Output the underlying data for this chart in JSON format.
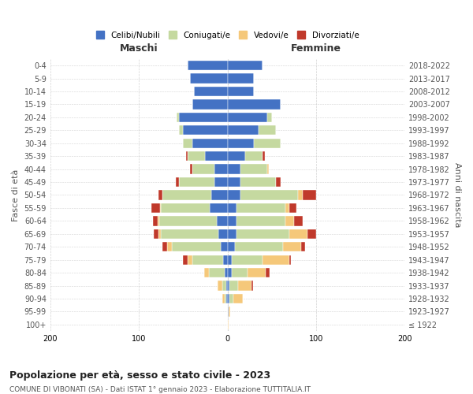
{
  "age_groups": [
    "100+",
    "95-99",
    "90-94",
    "85-89",
    "80-84",
    "75-79",
    "70-74",
    "65-69",
    "60-64",
    "55-59",
    "50-54",
    "45-49",
    "40-44",
    "35-39",
    "30-34",
    "25-29",
    "20-24",
    "15-19",
    "10-14",
    "5-9",
    "0-4"
  ],
  "birth_years": [
    "≤ 1922",
    "1923-1927",
    "1928-1932",
    "1933-1937",
    "1938-1942",
    "1943-1947",
    "1948-1952",
    "1953-1957",
    "1958-1962",
    "1963-1967",
    "1968-1972",
    "1973-1977",
    "1978-1982",
    "1983-1987",
    "1988-1992",
    "1993-1997",
    "1998-2002",
    "2003-2007",
    "2008-2012",
    "2013-2017",
    "2018-2022"
  ],
  "colors": {
    "celibe": "#4472C4",
    "coniugato": "#c5d9a0",
    "vedovo": "#f5c87a",
    "divorziato": "#c0392b"
  },
  "maschi": {
    "celibe": [
      0,
      0,
      1,
      1,
      3,
      5,
      8,
      10,
      12,
      20,
      18,
      15,
      15,
      25,
      40,
      50,
      55,
      40,
      38,
      42,
      45
    ],
    "coniugato": [
      0,
      0,
      2,
      5,
      18,
      35,
      55,
      65,
      65,
      55,
      55,
      40,
      25,
      20,
      10,
      5,
      2,
      0,
      0,
      0,
      0
    ],
    "vedovo": [
      0,
      0,
      3,
      5,
      5,
      5,
      5,
      3,
      2,
      1,
      0,
      0,
      0,
      0,
      0,
      0,
      0,
      0,
      0,
      0,
      0
    ],
    "divorziato": [
      0,
      0,
      0,
      0,
      0,
      5,
      5,
      5,
      5,
      10,
      5,
      3,
      2,
      2,
      0,
      0,
      0,
      0,
      0,
      0,
      0
    ]
  },
  "femmine": {
    "celibe": [
      0,
      1,
      2,
      2,
      5,
      5,
      8,
      10,
      10,
      10,
      15,
      15,
      15,
      20,
      30,
      35,
      45,
      60,
      30,
      30,
      40
    ],
    "coniugato": [
      0,
      0,
      5,
      10,
      18,
      35,
      55,
      60,
      55,
      55,
      65,
      40,
      30,
      20,
      30,
      20,
      5,
      0,
      0,
      0,
      0
    ],
    "vedovo": [
      1,
      2,
      10,
      15,
      20,
      30,
      20,
      20,
      10,
      5,
      5,
      0,
      2,
      0,
      0,
      0,
      0,
      0,
      0,
      0,
      0
    ],
    "divorziato": [
      0,
      0,
      0,
      2,
      5,
      2,
      5,
      10,
      10,
      8,
      15,
      5,
      0,
      2,
      0,
      0,
      0,
      0,
      0,
      0,
      0
    ]
  },
  "xlim": 200,
  "title": "Popolazione per età, sesso e stato civile - 2023",
  "subtitle": "COMUNE DI VIBONATI (SA) - Dati ISTAT 1° gennaio 2023 - Elaborazione TUTTITALIA.IT",
  "ylabel_left": "Fasce di età",
  "ylabel_right": "Anni di nascita",
  "legend_labels": [
    "Celibi/Nubili",
    "Coniugati/e",
    "Vedovi/e",
    "Divorziati/e"
  ]
}
